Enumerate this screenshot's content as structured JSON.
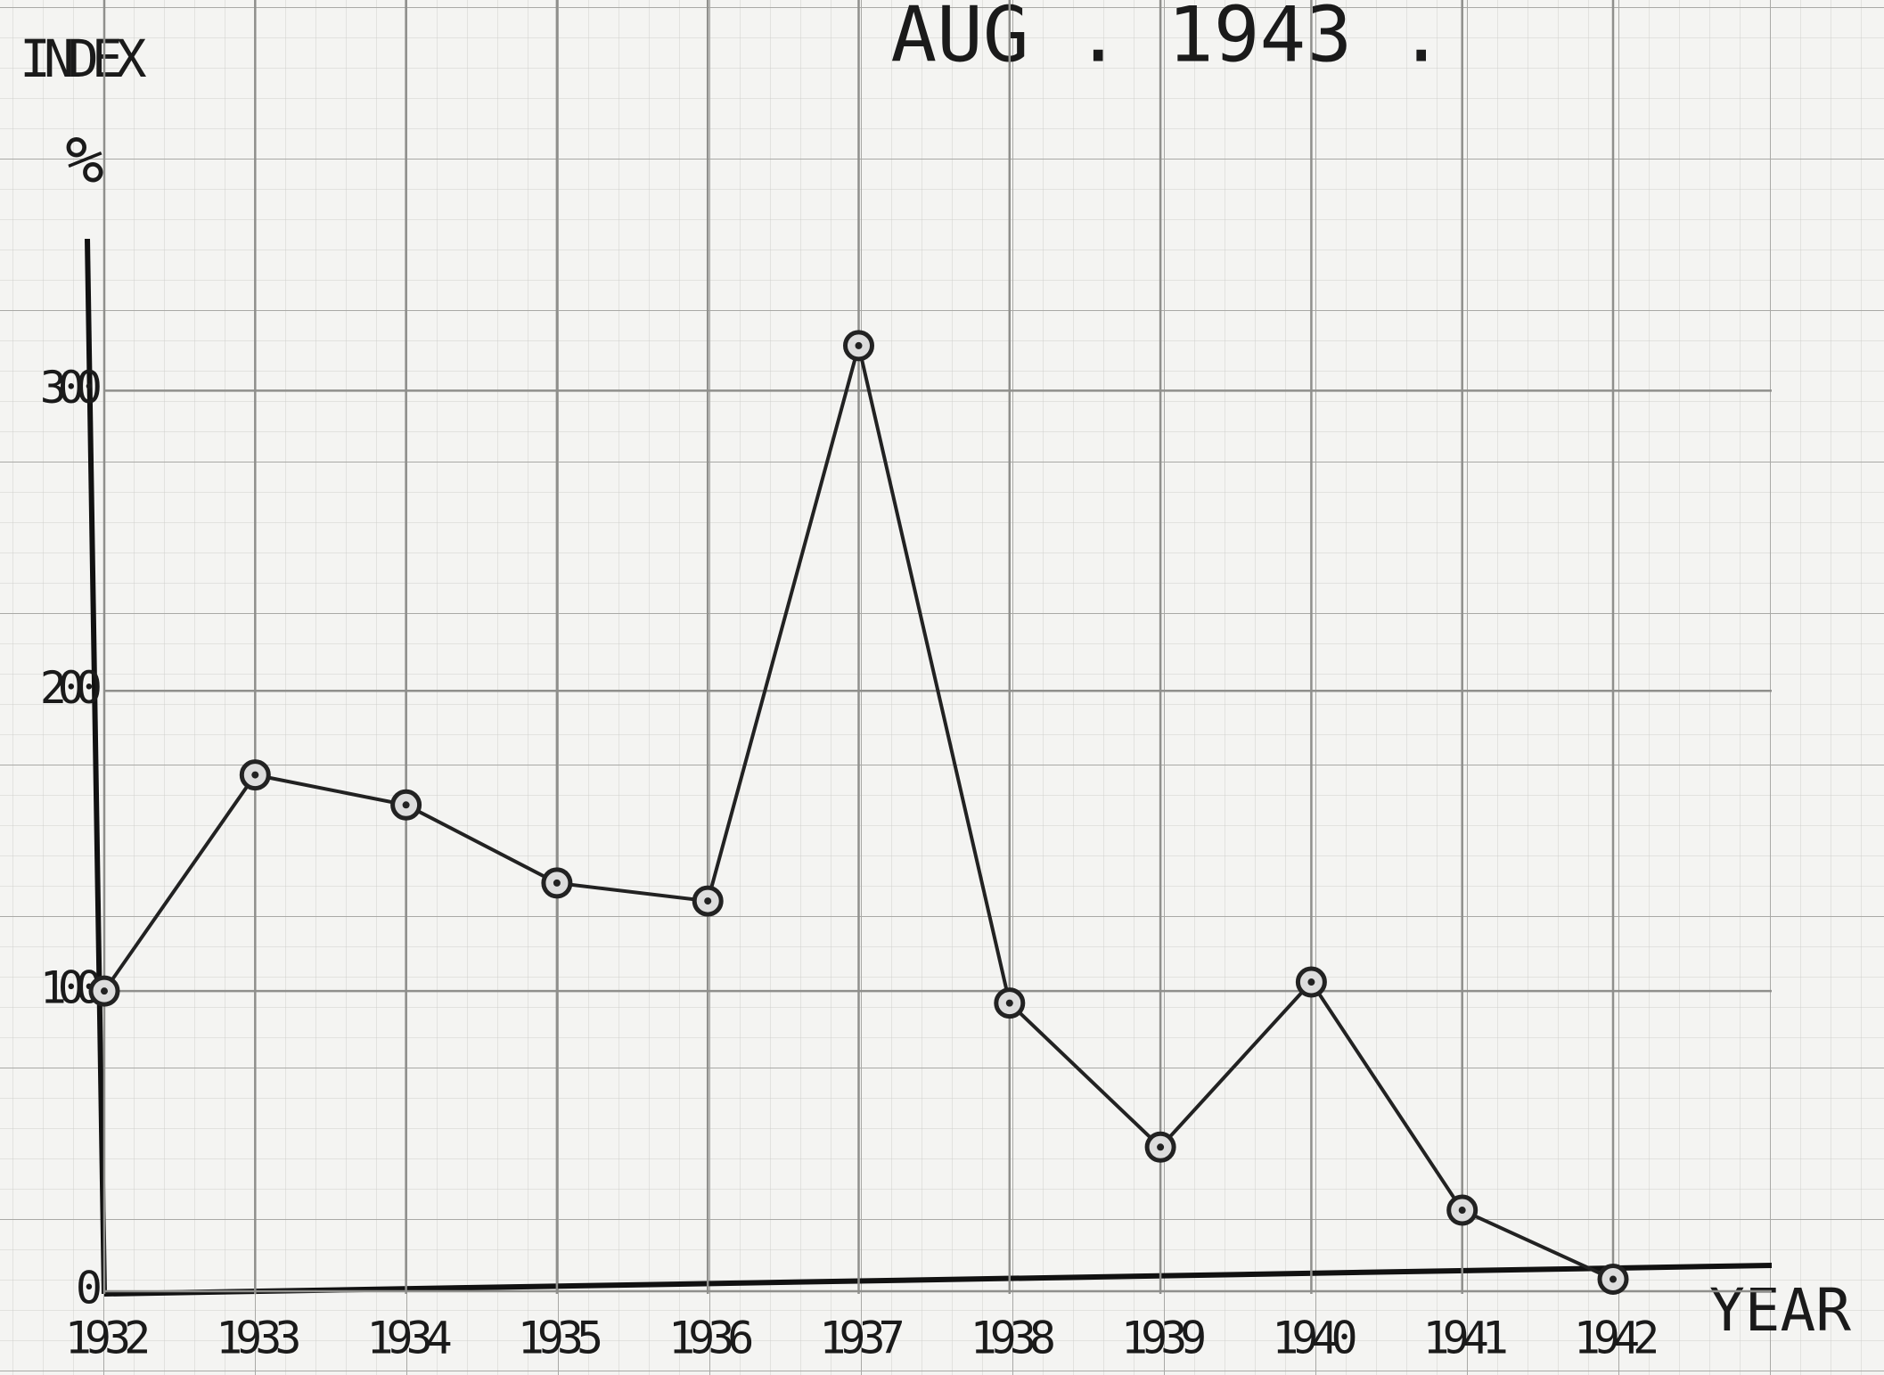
{
  "chart_data": {
    "type": "line",
    "title": "AUG . 1943 .",
    "y_label": "INDEX",
    "y_unit": "%",
    "x_label": "YEAR",
    "categories": [
      "1932",
      "1933",
      "1934",
      "1935",
      "1936",
      "1937",
      "1938",
      "1939",
      "1940",
      "1941",
      "1942"
    ],
    "series": [
      {
        "color": "#222222",
        "values": [
          100,
          172,
          162,
          136,
          130,
          315,
          96,
          48,
          103,
          27,
          4
        ]
      }
    ],
    "ylim": [
      0,
      350
    ],
    "yticks": [
      0,
      100,
      200,
      300
    ],
    "grid": true
  }
}
